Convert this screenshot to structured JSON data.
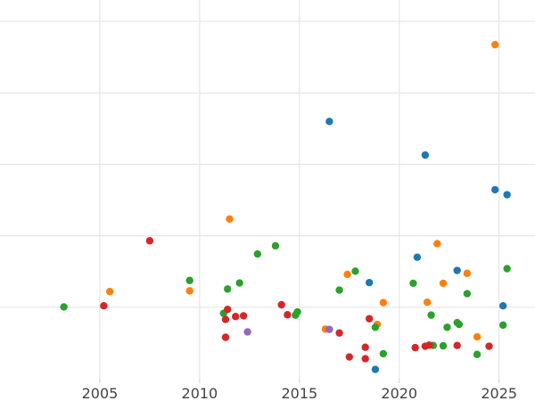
{
  "chart_data": {
    "type": "scatter",
    "title": "",
    "xlabel": "",
    "ylabel": "",
    "xlim": [
      2000.0,
      2026.8
    ],
    "ylim": [
      0.0,
      106.0
    ],
    "grid": true,
    "legend": "none",
    "x_ticks": [
      2005,
      2010,
      2015,
      2020,
      2025
    ],
    "x_tick_labels": [
      "2005",
      "2010",
      "2015",
      "2020",
      "2025"
    ],
    "y_grid_values": [
      20,
      40,
      60,
      80,
      100
    ],
    "colors": {
      "blue": "#1f77b4",
      "orange": "#ff7f0e",
      "green": "#2ca02c",
      "red": "#d62728",
      "purple": "#9467bd",
      "grid": "#e6e6e6",
      "tick_label": "#444444"
    },
    "series": [
      {
        "color": "#1f77b4",
        "x": [
          2016.5,
          2021.3,
          2024.8,
          2025.4,
          2020.9,
          2022.9,
          2018.5,
          2025.2,
          2018.8
        ],
        "y": [
          72.0,
          62.6,
          52.9,
          51.5,
          34.0,
          30.3,
          26.9,
          20.4,
          2.6
        ]
      },
      {
        "color": "#ff7f0e",
        "x": [
          2024.8,
          2011.5,
          2021.9,
          2017.4,
          2023.4,
          2022.2,
          2005.5,
          2009.5,
          2019.2,
          2021.4,
          2018.9,
          2016.3,
          2023.9
        ],
        "y": [
          93.5,
          44.7,
          37.8,
          29.2,
          29.5,
          26.7,
          24.4,
          24.6,
          21.3,
          21.4,
          15.2,
          13.9,
          11.7
        ]
      },
      {
        "color": "#2ca02c",
        "x": [
          2013.8,
          2012.9,
          2025.4,
          2017.8,
          2009.5,
          2012.0,
          2020.7,
          2011.4,
          2017.0,
          2023.4,
          2003.2,
          2014.9,
          2011.2,
          2014.8,
          2021.6,
          2022.9,
          2023.0,
          2018.8,
          2022.4,
          2025.2,
          2021.7,
          2022.2,
          2019.2,
          2023.9
        ],
        "y": [
          37.2,
          34.9,
          30.8,
          30.1,
          27.5,
          26.8,
          26.7,
          25.1,
          24.8,
          23.8,
          20.1,
          18.7,
          18.3,
          17.8,
          17.8,
          15.7,
          15.2,
          14.4,
          14.4,
          15.0,
          9.3,
          9.2,
          7.0,
          6.8
        ]
      },
      {
        "color": "#d62728",
        "x": [
          2007.5,
          2005.2,
          2014.1,
          2011.4,
          2011.8,
          2012.2,
          2014.4,
          2011.3,
          2018.5,
          2017.0,
          2011.3,
          2021.5,
          2021.3,
          2022.9,
          2024.5,
          2018.3,
          2020.8,
          2017.5,
          2018.3
        ],
        "y": [
          38.6,
          20.4,
          20.7,
          19.4,
          17.4,
          17.6,
          17.9,
          16.6,
          16.8,
          12.8,
          11.6,
          9.4,
          9.1,
          9.3,
          9.1,
          8.8,
          8.7,
          6.1,
          5.6
        ]
      },
      {
        "color": "#9467bd",
        "x": [
          2012.4,
          2016.5
        ],
        "y": [
          13.1,
          13.8
        ]
      }
    ]
  }
}
